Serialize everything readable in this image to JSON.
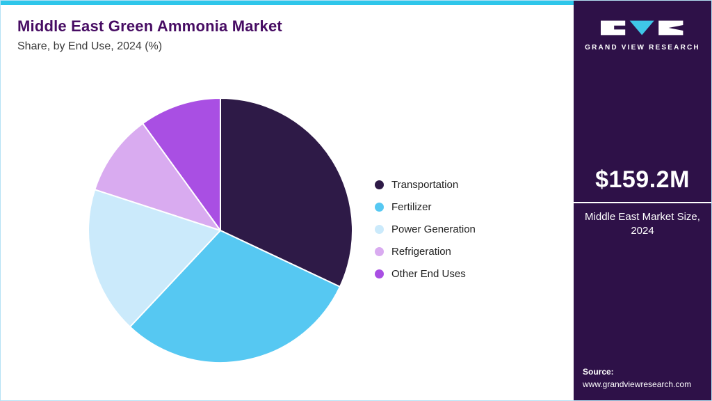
{
  "page": {
    "title": "Middle East Green Ammonia Market",
    "subtitle": "Share, by End Use, 2024 (%)"
  },
  "chart_data": {
    "type": "pie",
    "title": "Middle East Green Ammonia Market Share, by End Use, 2024 (%)",
    "categories": [
      "Transportation",
      "Fertilizer",
      "Power Generation",
      "Refrigeration",
      "Other End Uses"
    ],
    "values": [
      32,
      30,
      18,
      10,
      10
    ],
    "colors": [
      "#2e1a47",
      "#56c8f2",
      "#cbeafb",
      "#d9abf0",
      "#a94fe3"
    ],
    "start_angle_deg": 0,
    "direction": "clockwise",
    "legend_position": "right",
    "slice_stroke_color": "#ffffff"
  },
  "sidebar": {
    "logo_text": "GRAND VIEW RESEARCH",
    "market_size": "$159.2M",
    "market_size_label": "Middle East Market Size, 2024",
    "source_label": "Source:",
    "source_url": "www.grandviewresearch.com"
  },
  "theme": {
    "top_bar_color": "#2ec6ea",
    "card_border_color": "#b5e2f5",
    "sidebar_background": "#2e1148",
    "title_color": "#470c63",
    "logo_accent": "#3fc7e8"
  }
}
